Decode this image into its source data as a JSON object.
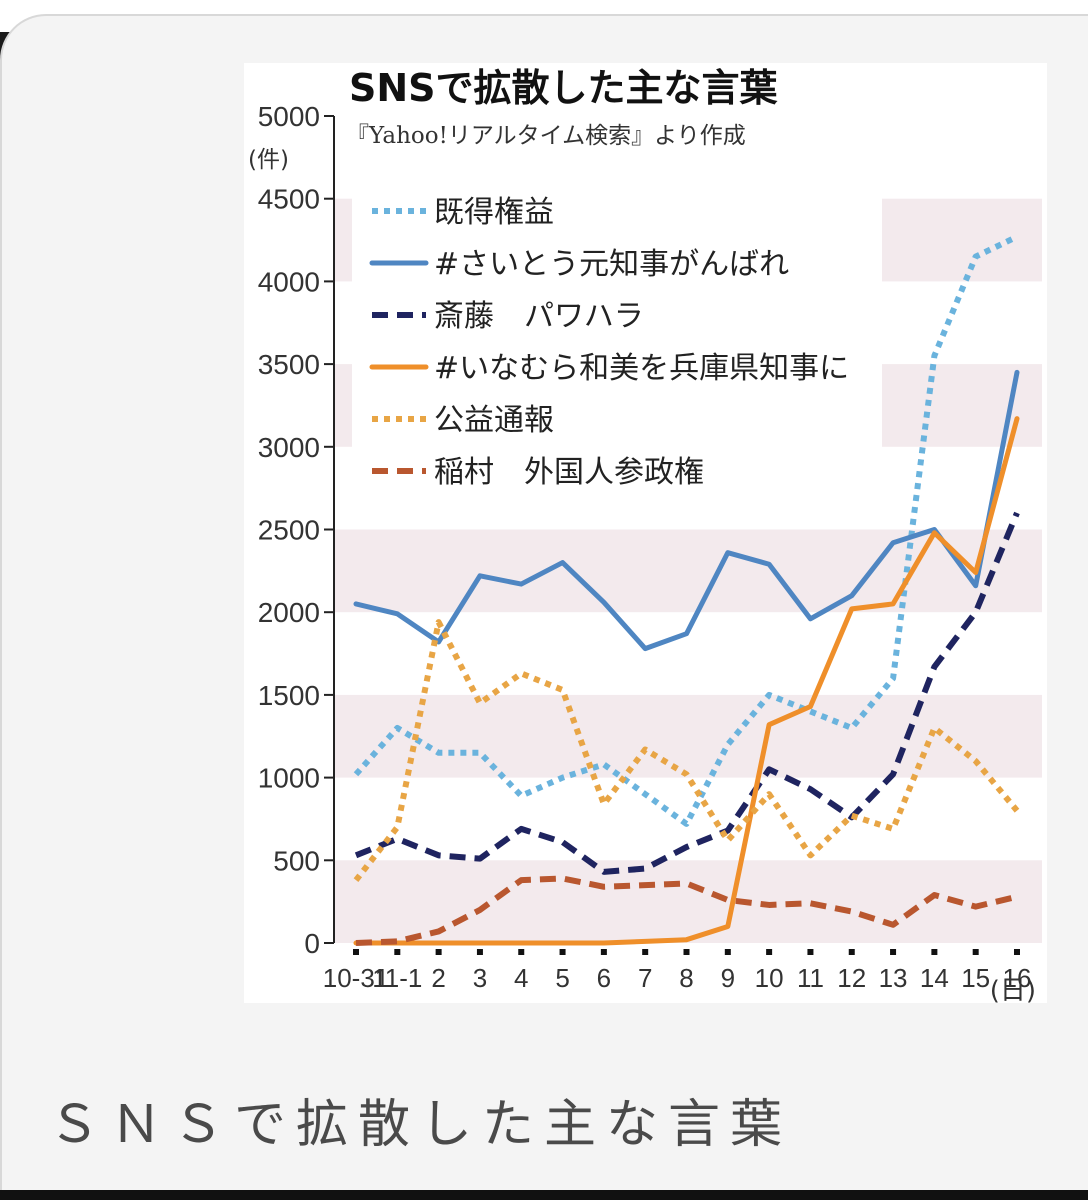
{
  "caption": "ＳＮＳで拡散した主な言葉",
  "chart_data": {
    "type": "line",
    "title": "SNSで拡散した主な言葉",
    "subtitle": "『Yahoo!リアルタイム検索』より作成",
    "ylabel": "(件)",
    "xlabel_unit": "(日)",
    "ylim": [
      0,
      5000
    ],
    "yticks": [
      0,
      500,
      1000,
      1500,
      2000,
      2500,
      3000,
      3500,
      4000,
      4500,
      5000
    ],
    "categories": [
      "10-31",
      "11-1",
      "2",
      "3",
      "4",
      "5",
      "6",
      "7",
      "8",
      "9",
      "10",
      "11",
      "12",
      "13",
      "14",
      "15",
      "16"
    ],
    "legend_position": "top-left",
    "series": [
      {
        "name": "既得権益",
        "color": "#6ab3dd",
        "style": "dotted",
        "values": [
          1020,
          1300,
          1150,
          1150,
          890,
          1000,
          1080,
          900,
          720,
          1200,
          1500,
          1400,
          1300,
          1600,
          3550,
          4150,
          4270
        ]
      },
      {
        "name": "#さいとう元知事がんばれ",
        "color": "#4f86c2",
        "style": "solid",
        "values": [
          2050,
          1990,
          1820,
          2220,
          2170,
          2300,
          2060,
          1780,
          1870,
          2360,
          2290,
          1960,
          2100,
          2420,
          2500,
          2160,
          3450
        ]
      },
      {
        "name": "斎藤　パワハラ",
        "color": "#1f2460",
        "style": "dashed",
        "values": [
          530,
          630,
          530,
          510,
          690,
          610,
          430,
          450,
          580,
          680,
          1050,
          930,
          760,
          1020,
          1670,
          2000,
          2600
        ]
      },
      {
        "name": "#いなむら和美を兵庫県知事に",
        "color": "#ef8f2a",
        "style": "solid",
        "values": [
          0,
          0,
          0,
          0,
          0,
          0,
          0,
          10,
          20,
          100,
          1320,
          1430,
          2020,
          2050,
          2480,
          2240,
          3170
        ]
      },
      {
        "name": "公益通報",
        "color": "#e8a545",
        "style": "dotted",
        "values": [
          380,
          700,
          1940,
          1450,
          1630,
          1530,
          840,
          1170,
          1020,
          620,
          900,
          530,
          770,
          690,
          1300,
          1100,
          800
        ]
      },
      {
        "name": "稲村　外国人参政権",
        "color": "#b9572f",
        "style": "dashed",
        "values": [
          0,
          10,
          70,
          200,
          380,
          390,
          340,
          350,
          360,
          260,
          230,
          240,
          190,
          110,
          290,
          220,
          280
        ]
      }
    ]
  }
}
